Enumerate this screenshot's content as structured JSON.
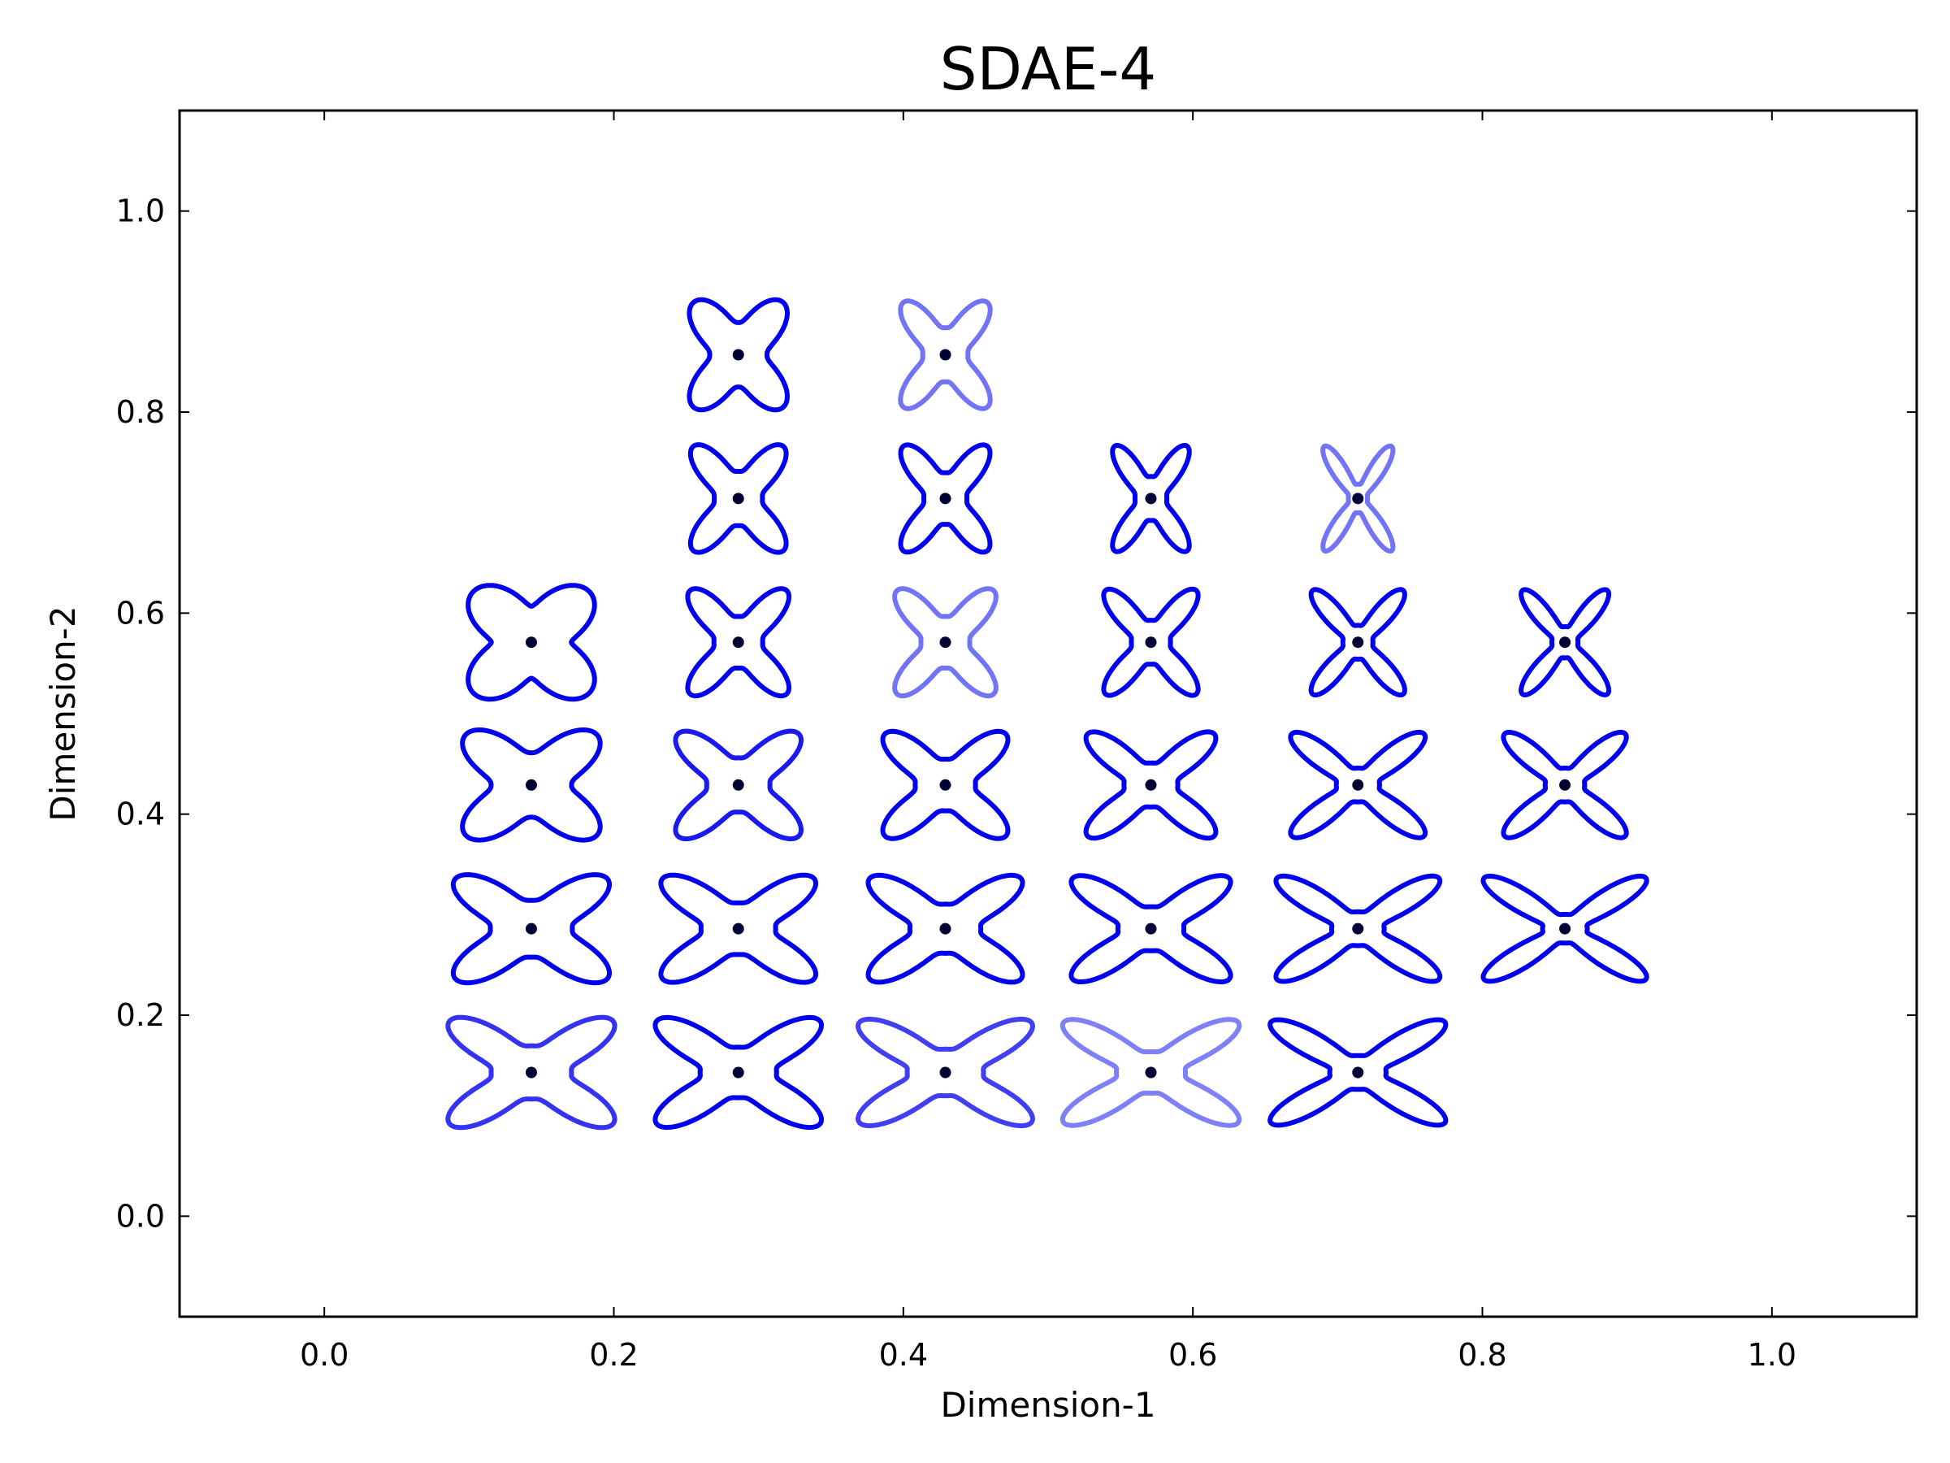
{
  "chart_data": {
    "type": "scatter",
    "title": "SDAE-4",
    "xlabel": "Dimension-1",
    "ylabel": "Dimension-2",
    "xlim": [
      -0.1,
      1.1
    ],
    "ylim": [
      -0.1,
      1.1
    ],
    "xticks": [
      "0.0",
      "0.2",
      "0.4",
      "0.6",
      "0.8",
      "1.0"
    ],
    "yticks": [
      "0.0",
      "0.2",
      "0.4",
      "0.6",
      "0.8",
      "1.0"
    ],
    "grid": false,
    "marker_color": "#000033",
    "glyph_color": "#0000ee",
    "note_glyph": "each point carries a star-shaped contour glyph",
    "points": [
      {
        "x": 0.143,
        "y": 0.143,
        "alpha": 0.8,
        "width": 0.56,
        "height": 0.37,
        "sharp": 0.5
      },
      {
        "x": 0.286,
        "y": 0.143,
        "alpha": 1.0,
        "width": 0.56,
        "height": 0.37,
        "sharp": 0.55
      },
      {
        "x": 0.429,
        "y": 0.143,
        "alpha": 0.75,
        "width": 0.59,
        "height": 0.36,
        "sharp": 0.6
      },
      {
        "x": 0.571,
        "y": 0.143,
        "alpha": 0.5,
        "width": 0.6,
        "height": 0.36,
        "sharp": 0.7
      },
      {
        "x": 0.714,
        "y": 0.143,
        "alpha": 1.0,
        "width": 0.6,
        "height": 0.36,
        "sharp": 0.85
      },
      {
        "x": 0.143,
        "y": 0.286,
        "alpha": 1.0,
        "width": 0.52,
        "height": 0.36,
        "sharp": 0.4
      },
      {
        "x": 0.286,
        "y": 0.286,
        "alpha": 1.0,
        "width": 0.52,
        "height": 0.36,
        "sharp": 0.5
      },
      {
        "x": 0.429,
        "y": 0.286,
        "alpha": 1.0,
        "width": 0.52,
        "height": 0.36,
        "sharp": 0.55
      },
      {
        "x": 0.571,
        "y": 0.286,
        "alpha": 1.0,
        "width": 0.54,
        "height": 0.36,
        "sharp": 0.65
      },
      {
        "x": 0.714,
        "y": 0.286,
        "alpha": 1.0,
        "width": 0.56,
        "height": 0.36,
        "sharp": 0.85
      },
      {
        "x": 0.857,
        "y": 0.286,
        "alpha": 1.0,
        "width": 0.56,
        "height": 0.36,
        "sharp": 0.95
      },
      {
        "x": 0.143,
        "y": 0.429,
        "alpha": 1.0,
        "width": 0.45,
        "height": 0.36,
        "sharp": 0.25
      },
      {
        "x": 0.286,
        "y": 0.429,
        "alpha": 0.9,
        "width": 0.42,
        "height": 0.36,
        "sharp": 0.45
      },
      {
        "x": 0.429,
        "y": 0.429,
        "alpha": 1.0,
        "width": 0.42,
        "height": 0.36,
        "sharp": 0.5
      },
      {
        "x": 0.571,
        "y": 0.429,
        "alpha": 1.0,
        "width": 0.44,
        "height": 0.36,
        "sharp": 0.65
      },
      {
        "x": 0.714,
        "y": 0.429,
        "alpha": 1.0,
        "width": 0.46,
        "height": 0.36,
        "sharp": 0.85
      },
      {
        "x": 0.857,
        "y": 0.429,
        "alpha": 1.0,
        "width": 0.42,
        "height": 0.36,
        "sharp": 0.85
      },
      {
        "x": 0.143,
        "y": 0.571,
        "alpha": 1.0,
        "width": 0.4,
        "height": 0.36,
        "sharp": 0.1
      },
      {
        "x": 0.286,
        "y": 0.571,
        "alpha": 1.0,
        "width": 0.34,
        "height": 0.36,
        "sharp": 0.5
      },
      {
        "x": 0.429,
        "y": 0.571,
        "alpha": 0.55,
        "width": 0.34,
        "height": 0.36,
        "sharp": 0.5
      },
      {
        "x": 0.571,
        "y": 0.571,
        "alpha": 1.0,
        "width": 0.32,
        "height": 0.36,
        "sharp": 0.65
      },
      {
        "x": 0.714,
        "y": 0.571,
        "alpha": 1.0,
        "width": 0.32,
        "height": 0.36,
        "sharp": 0.85
      },
      {
        "x": 0.857,
        "y": 0.571,
        "alpha": 1.0,
        "width": 0.3,
        "height": 0.36,
        "sharp": 0.9
      },
      {
        "x": 0.286,
        "y": 0.714,
        "alpha": 1.0,
        "width": 0.32,
        "height": 0.36,
        "sharp": 0.45
      },
      {
        "x": 0.429,
        "y": 0.714,
        "alpha": 1.0,
        "width": 0.3,
        "height": 0.36,
        "sharp": 0.5
      },
      {
        "x": 0.571,
        "y": 0.714,
        "alpha": 1.0,
        "width": 0.26,
        "height": 0.36,
        "sharp": 0.65
      },
      {
        "x": 0.714,
        "y": 0.714,
        "alpha": 0.55,
        "width": 0.24,
        "height": 0.36,
        "sharp": 0.95
      },
      {
        "x": 0.286,
        "y": 0.857,
        "alpha": 1.0,
        "width": 0.32,
        "height": 0.36,
        "sharp": 0.25
      },
      {
        "x": 0.429,
        "y": 0.857,
        "alpha": 0.55,
        "width": 0.3,
        "height": 0.36,
        "sharp": 0.45
      }
    ]
  }
}
